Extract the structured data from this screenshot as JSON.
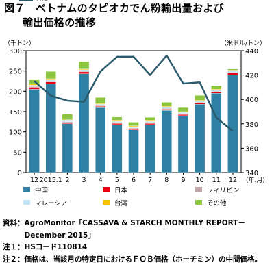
{
  "title": {
    "line1": "図７　ベトナムのタピオカでん粉輸出量および",
    "line2": "輸出価格の推移"
  },
  "chart_data": {
    "type": "bar",
    "left_axis_label": "（千トン）",
    "right_axis_label": "（米ドル/トン）",
    "xunit": "(年.月)",
    "categories": [
      "12",
      "2015.1",
      "2",
      "3",
      "4",
      "5",
      "6",
      "7",
      "8",
      "9",
      "10",
      "11",
      "12"
    ],
    "y_left": {
      "min": 0,
      "max": 300,
      "ticks": [
        0,
        50,
        100,
        150,
        200,
        250,
        300
      ]
    },
    "y_right": {
      "min": 340,
      "max": 440,
      "ticks": [
        340,
        360,
        380,
        400,
        420,
        440
      ]
    },
    "stacked": true,
    "series": [
      {
        "name": "中国",
        "type": "bar",
        "color": "#2f80a3",
        "values": [
          205,
          218,
          120,
          243,
          160,
          118,
          105,
          118,
          153,
          140,
          168,
          195,
          240
        ]
      },
      {
        "name": "日本",
        "type": "bar",
        "color": "#e60012",
        "values": [
          5,
          5,
          3,
          5,
          3,
          3,
          3,
          3,
          3,
          3,
          3,
          3,
          5
        ]
      },
      {
        "name": "フィリピン",
        "type": "bar",
        "color": "#c2a5a8",
        "values": [
          2,
          2,
          2,
          2,
          2,
          2,
          2,
          2,
          2,
          2,
          2,
          2,
          2
        ]
      },
      {
        "name": "マレーシア",
        "type": "bar",
        "color": "#bfe3f2",
        "values": [
          3,
          3,
          3,
          3,
          3,
          3,
          3,
          3,
          3,
          3,
          3,
          3,
          3
        ]
      },
      {
        "name": "台湾",
        "type": "bar",
        "color": "#f5c400",
        "values": [
          3,
          3,
          2,
          2,
          2,
          2,
          2,
          2,
          2,
          2,
          2,
          2,
          2
        ]
      },
      {
        "name": "その他",
        "type": "bar",
        "color": "#8cc63f",
        "values": [
          10,
          18,
          14,
          18,
          15,
          9,
          9,
          8,
          10,
          10,
          12,
          9,
          3
        ]
      },
      {
        "name": "価格",
        "type": "line",
        "axis": "right",
        "color": "#2a5a6b",
        "values": [
          415,
          403,
          399,
          398,
          423,
          435,
          435,
          420,
          436,
          413,
          414,
          385,
          374
        ]
      }
    ]
  },
  "notes": [
    {
      "label": "資料：",
      "text": "AgroMonitor「CASSAVA & STARCH MONTHLY REPORT－December 2015」"
    },
    {
      "label": "注１：",
      "text": "HSコード110814"
    },
    {
      "label": "注２：",
      "text": "価格は、当該月の特定日におけるＦＯＢ価格（ホーチミン）の中間価格。"
    }
  ]
}
